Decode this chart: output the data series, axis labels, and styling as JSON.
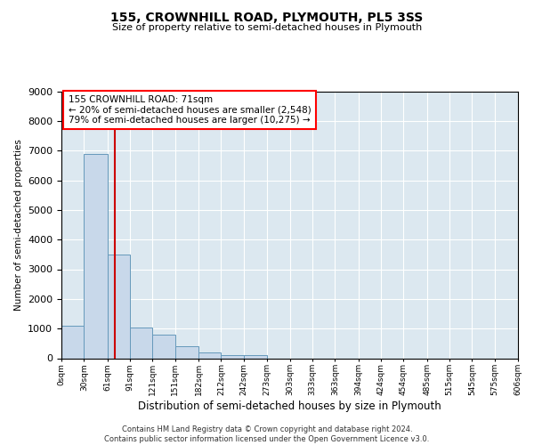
{
  "title1": "155, CROWNHILL ROAD, PLYMOUTH, PL5 3SS",
  "title2": "Size of property relative to semi-detached houses in Plymouth",
  "xlabel": "Distribution of semi-detached houses by size in Plymouth",
  "ylabel": "Number of semi-detached properties",
  "bar_color": "#c8d8ea",
  "bar_edge_color": "#6699bb",
  "plot_bg": "#dce8f0",
  "ylim_max": 9000,
  "yticks": [
    0,
    1000,
    2000,
    3000,
    4000,
    5000,
    6000,
    7000,
    8000,
    9000
  ],
  "bin_edges": [
    0,
    30,
    61,
    91,
    121,
    151,
    182,
    212,
    242,
    273,
    303,
    333,
    363,
    394,
    424,
    454,
    485,
    515,
    545,
    575,
    606
  ],
  "bin_labels": [
    "0sqm",
    "30sqm",
    "61sqm",
    "91sqm",
    "121sqm",
    "151sqm",
    "182sqm",
    "212sqm",
    "242sqm",
    "273sqm",
    "303sqm",
    "333sqm",
    "363sqm",
    "394sqm",
    "424sqm",
    "454sqm",
    "485sqm",
    "515sqm",
    "545sqm",
    "575sqm",
    "606sqm"
  ],
  "bar_heights": [
    1100,
    6900,
    3500,
    1050,
    800,
    400,
    200,
    100,
    100,
    0,
    0,
    0,
    0,
    0,
    0,
    0,
    0,
    0,
    0,
    0
  ],
  "property_sqm": 71,
  "property_label": "155 CROWNHILL ROAD: 71sqm",
  "smaller_pct": 20,
  "smaller_count": "2,548",
  "larger_pct": 79,
  "larger_count": "10,275",
  "vline_color": "#cc0000",
  "ann_line1": "155 CROWNHILL ROAD: 71sqm",
  "ann_line2": "← 20% of semi-detached houses are smaller (2,548)",
  "ann_line3": "79% of semi-detached houses are larger (10,275) →",
  "footer1": "Contains HM Land Registry data © Crown copyright and database right 2024.",
  "footer2": "Contains public sector information licensed under the Open Government Licence v3.0."
}
